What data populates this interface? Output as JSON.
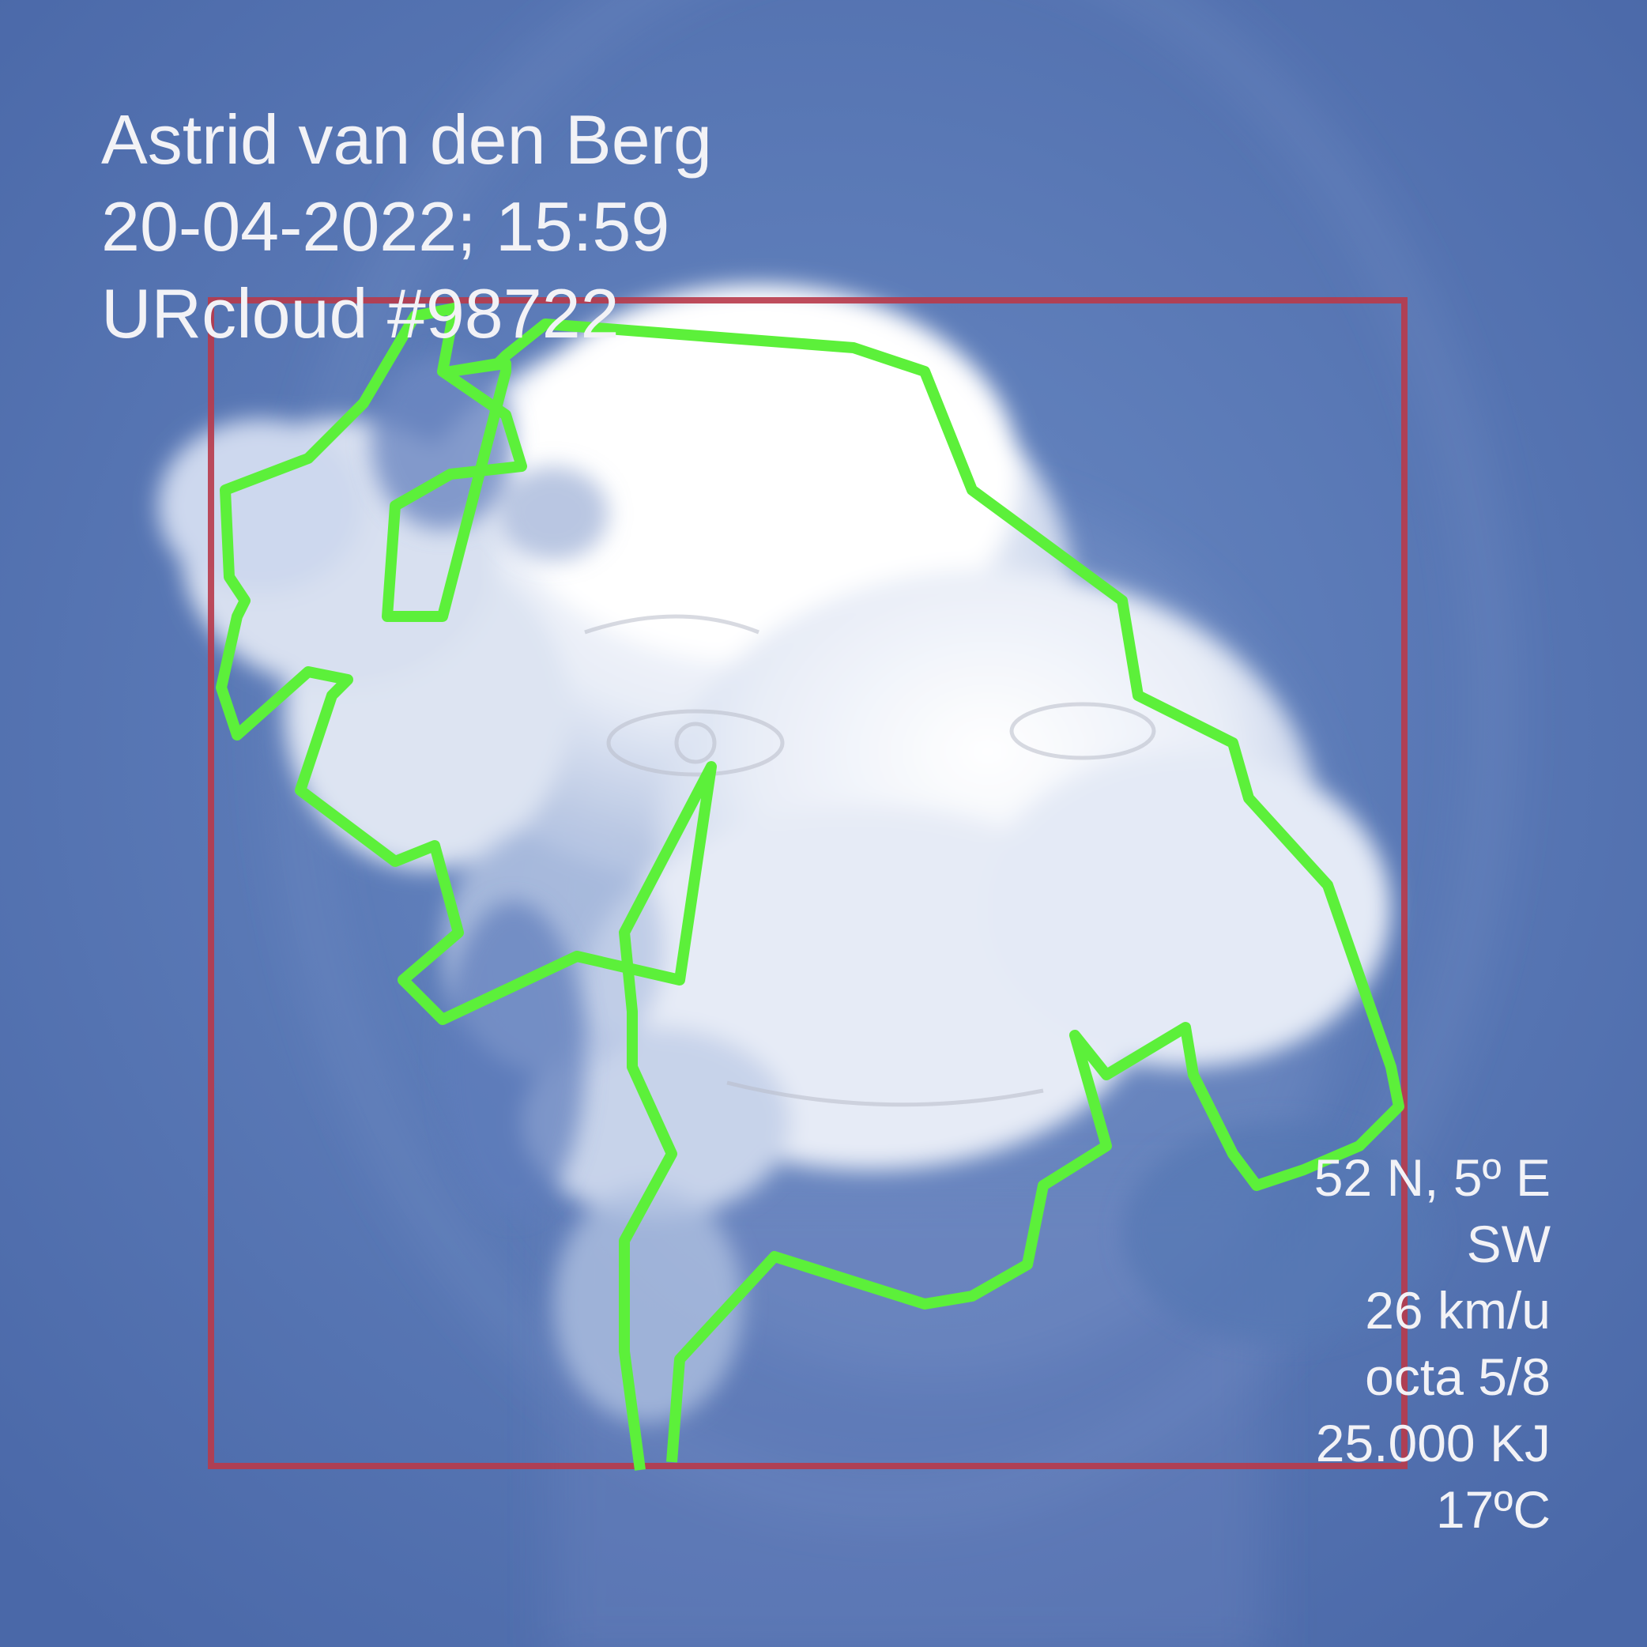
{
  "header": {
    "name": "Astrid van den Berg",
    "datetime": "20-04-2022; 15:59",
    "cloud_id": "URcloud #98722"
  },
  "stats": {
    "coordinates": "52 N, 5º E",
    "wind_direction": "SW",
    "wind_speed": "26 km/u",
    "cloud_cover": "octa 5/8",
    "energy": "25.000 KJ",
    "temperature": "17ºC"
  },
  "colors": {
    "sky": "#5676b3",
    "outline": "#5cf03a",
    "box": "#b83a4a",
    "text": "#f2f2f6"
  }
}
